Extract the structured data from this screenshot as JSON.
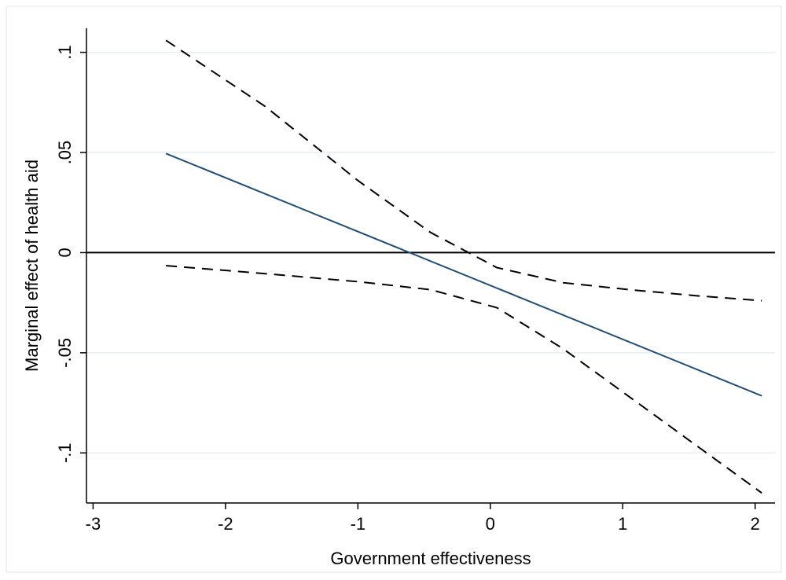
{
  "chart_data": {
    "type": "line",
    "title": "",
    "xlabel": "Government effectiveness",
    "ylabel": "Marginal effect of health aid",
    "xlim": [
      -3.05,
      2.15
    ],
    "ylim": [
      -0.125,
      0.112
    ],
    "x_ticks": [
      -3,
      -2,
      -1,
      0,
      1,
      2
    ],
    "x_tick_labels": [
      "-3",
      "-2",
      "-1",
      "0",
      "1",
      "2"
    ],
    "y_ticks": [
      -0.1,
      -0.05,
      0,
      0.05,
      0.1
    ],
    "y_tick_labels": [
      "-.1",
      "-.05",
      "0",
      ".05",
      ".1"
    ],
    "grid": true,
    "reference_line_y": 0,
    "series": [
      {
        "role": "estimate",
        "color": "#1f4e79",
        "style": "solid",
        "x": [
          -2.45,
          2.05
        ],
        "y": [
          0.0495,
          -0.0715
        ]
      },
      {
        "role": "upper",
        "color": "#000000",
        "style": "dashed",
        "x": [
          -2.45,
          -1.7,
          -1.0,
          -0.45,
          0.05,
          0.55,
          1.05,
          1.55,
          2.05
        ],
        "y": [
          0.106,
          0.073,
          0.036,
          0.01,
          -0.0075,
          -0.015,
          -0.0185,
          -0.0215,
          -0.024
        ]
      },
      {
        "role": "lower",
        "color": "#000000",
        "style": "dashed",
        "x": [
          -2.45,
          -1.7,
          -1.0,
          -0.45,
          0.05,
          0.55,
          1.05,
          1.55,
          2.05
        ],
        "y": [
          -0.0065,
          -0.0105,
          -0.0145,
          -0.0185,
          -0.0275,
          -0.048,
          -0.072,
          -0.096,
          -0.12
        ]
      }
    ]
  }
}
